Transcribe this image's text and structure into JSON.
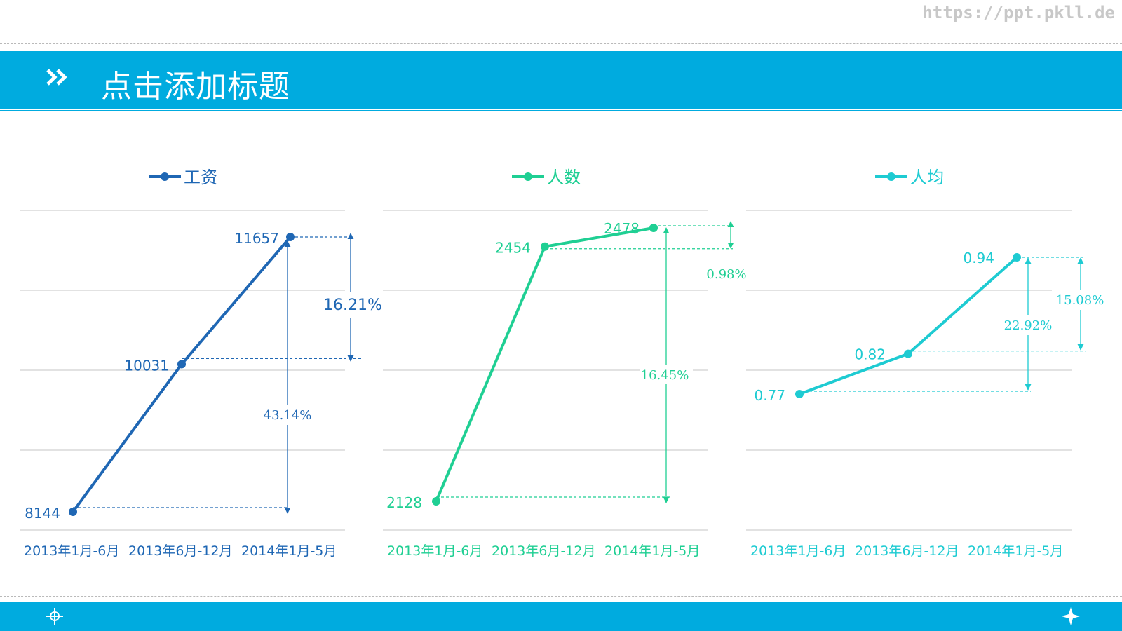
{
  "watermark": "https://ppt.pkll.de",
  "header": {
    "title": "点击添加标题"
  },
  "icons": {
    "header": "double-chevron-right-icon",
    "footer_left": "crosshair-icon",
    "footer_right": "four-point-star-icon"
  },
  "colors": {
    "band": "#00abdf",
    "salary": "#1f67b4",
    "headcount": "#1fcf93",
    "per_capita": "#1ecbd2",
    "grid": "#d9d9d9"
  },
  "chart_data": [
    {
      "type": "line",
      "legend": "工资",
      "categories": [
        "2013年1月-6月",
        "2013年6月-12月",
        "2014年1月-5月"
      ],
      "series": [
        {
          "name": "工资",
          "values": [
            8144,
            10031,
            11657
          ]
        }
      ],
      "data_labels": [
        "8144",
        "10031",
        "11657"
      ],
      "annotations": [
        "16.21%",
        "43.14%"
      ],
      "grid": true,
      "legend_position": "top"
    },
    {
      "type": "line",
      "legend": "人数",
      "categories": [
        "2013年1月-6月",
        "2013年6月-12月",
        "2014年1月-5月"
      ],
      "series": [
        {
          "name": "人数",
          "values": [
            2128,
            2454,
            2478
          ]
        }
      ],
      "data_labels": [
        "2128",
        "2454",
        "2478"
      ],
      "annotations": [
        "0.98%",
        "16.45%"
      ],
      "grid": true,
      "legend_position": "top"
    },
    {
      "type": "line",
      "legend": "人均",
      "categories": [
        "2013年1月-6月",
        "2013年6月-12月",
        "2014年1月-5月"
      ],
      "series": [
        {
          "name": "人均",
          "values": [
            0.77,
            0.82,
            0.94
          ]
        }
      ],
      "data_labels": [
        "0.77",
        "0.82",
        "0.94"
      ],
      "annotations": [
        "15.08%",
        "22.92%"
      ],
      "grid": true,
      "legend_position": "top"
    }
  ]
}
